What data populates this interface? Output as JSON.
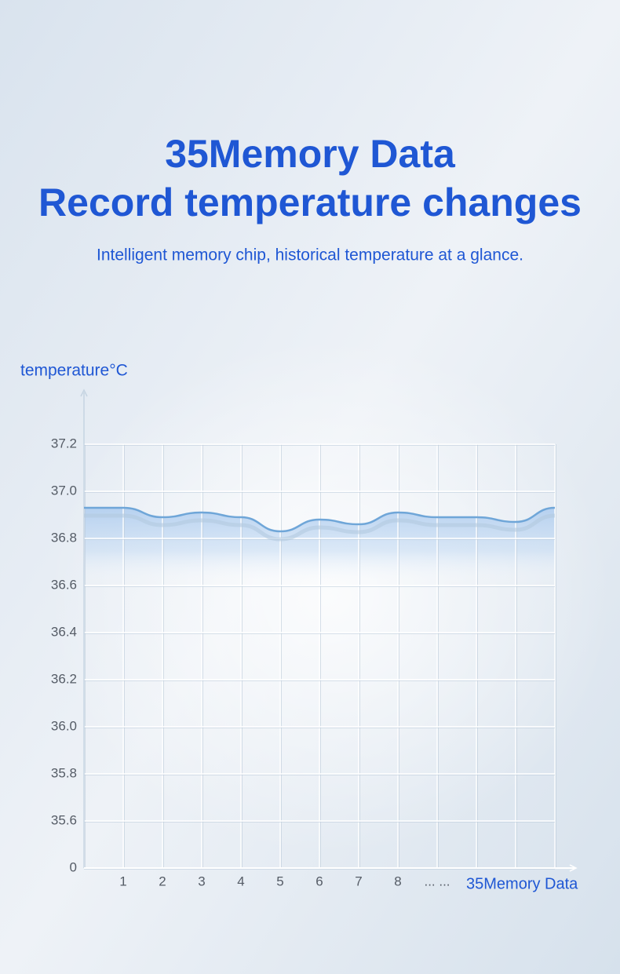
{
  "chart_data": {
    "type": "line",
    "title": "35Memory Data",
    "subtitle": "Record temperature changes",
    "caption": "Intelligent memory chip, historical temperature at a glance.",
    "y_label": "temperature°C",
    "x_label": "35Memory Data",
    "categories": [
      null,
      "1",
      "2",
      "3",
      "4",
      "5",
      "6",
      "7",
      "8",
      "... ...",
      null,
      null,
      null
    ],
    "series": [
      {
        "color": "#6fa6d8",
        "values": [
          36.93,
          36.93,
          36.89,
          36.91,
          36.89,
          36.83,
          36.88,
          36.86,
          36.91,
          36.89,
          36.89,
          36.87,
          36.93
        ]
      }
    ],
    "ylim": [
      0,
      37.2
    ],
    "yticks": [
      0,
      35.6,
      35.8,
      {
        "value": 36,
        "label": "36.0"
      },
      36.2,
      36.4,
      36.6,
      36.8,
      {
        "value": 37,
        "label": "37.0"
      },
      37.2
    ],
    "grid": true
  }
}
